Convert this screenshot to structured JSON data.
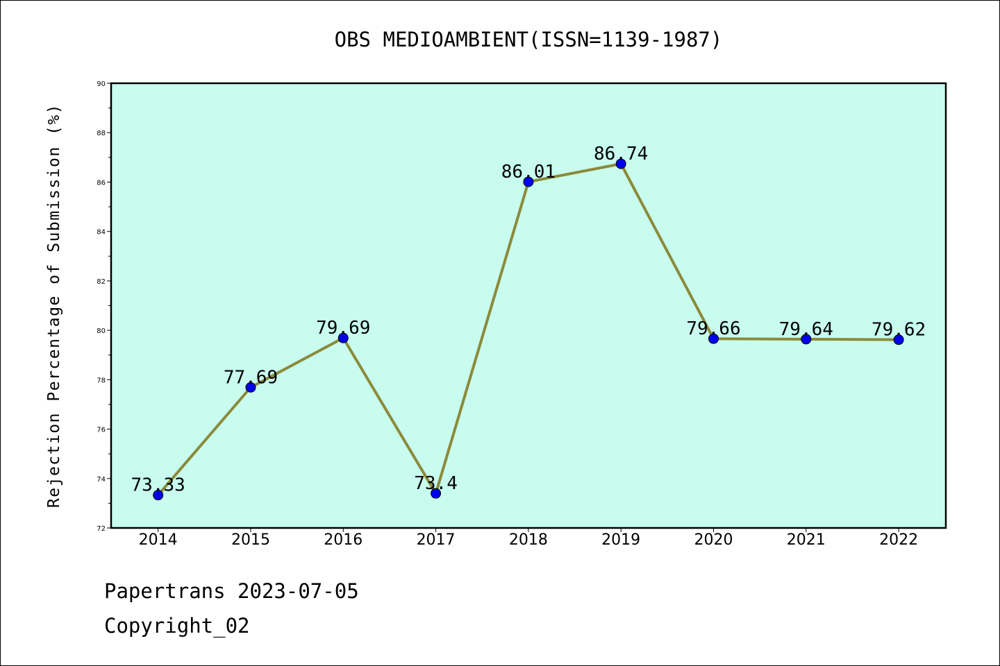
{
  "chart_data": {
    "type": "line",
    "title": "OBS MEDIOAMBIENT(ISSN=1139-1987)",
    "xlabel": "",
    "ylabel": "Rejection Percentage of Submission (%)",
    "categories": [
      "2014",
      "2015",
      "2016",
      "2017",
      "2018",
      "2019",
      "2020",
      "2021",
      "2022"
    ],
    "values": [
      73.33,
      77.69,
      79.69,
      73.4,
      86.01,
      86.74,
      79.66,
      79.64,
      79.62
    ],
    "data_labels": [
      "73.33",
      "77.69",
      "79.69",
      "73.4",
      "86.01",
      "86.74",
      "79.66",
      "79.64",
      "79.62"
    ],
    "ylim": [
      72,
      90
    ],
    "yticks": [
      72,
      74,
      76,
      78,
      80,
      82,
      84,
      86,
      88,
      90
    ],
    "grid": false,
    "colors": {
      "plot_background": "#c8fcee",
      "line": "#8b8a3a",
      "marker": "#0000ee"
    }
  },
  "footer": {
    "line1": "Papertrans 2023-07-05",
    "line2": "Copyright_02"
  }
}
